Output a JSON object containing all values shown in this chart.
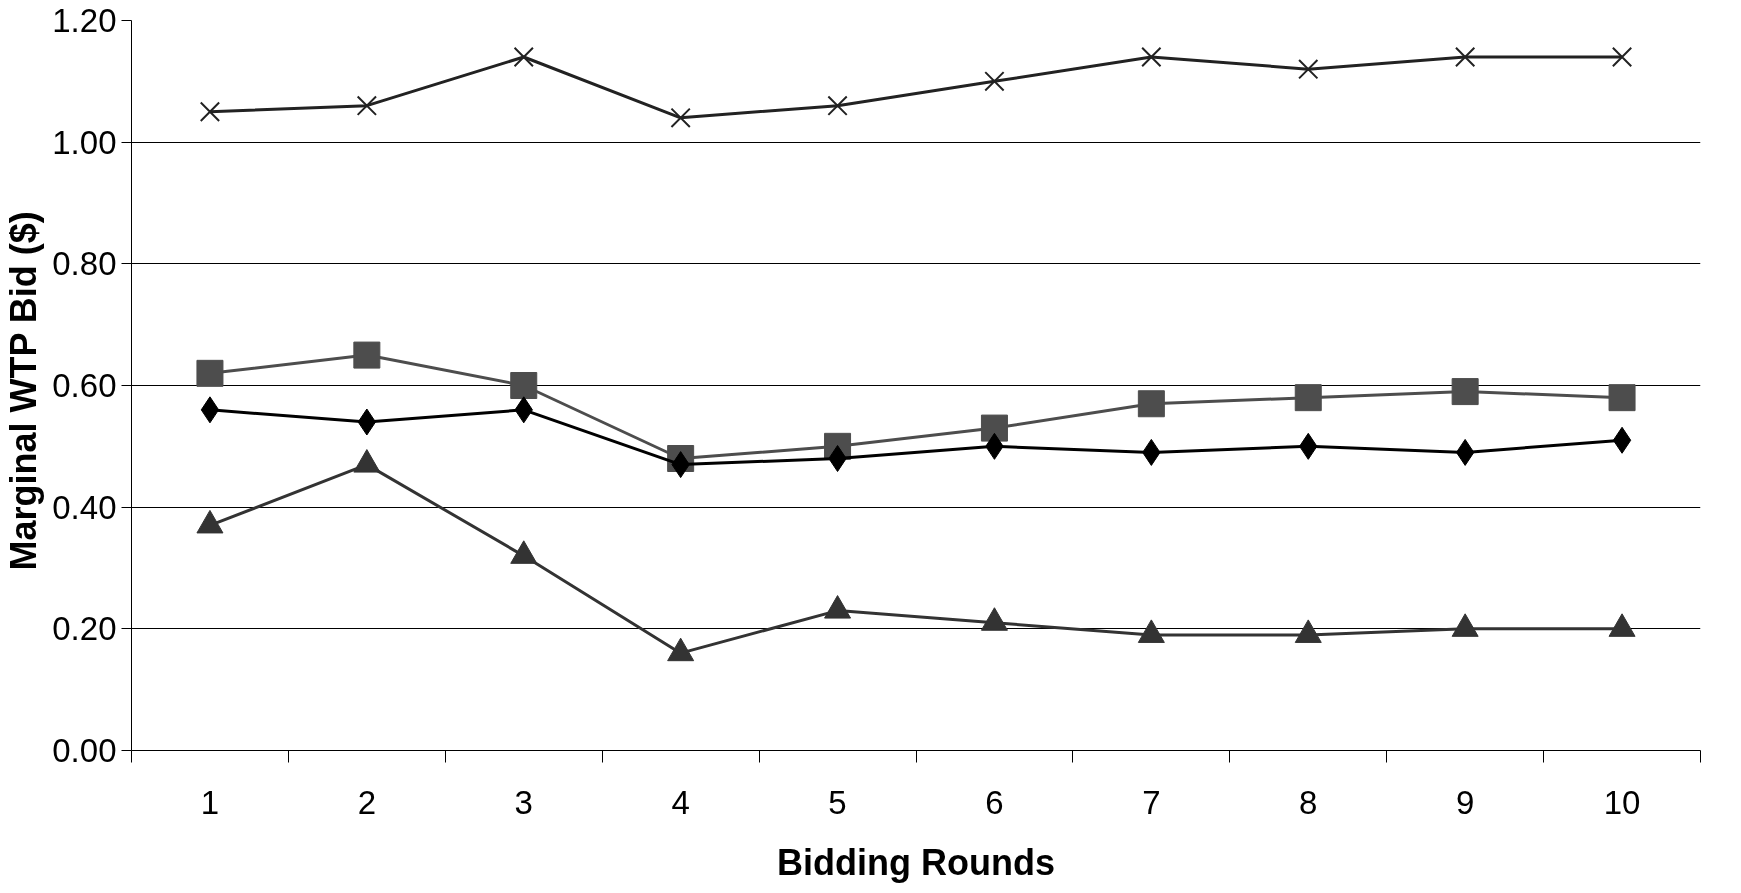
{
  "chart_data": {
    "type": "line",
    "xlabel": "Bidding Rounds",
    "ylabel": "Marginal WTP  Bid ($)",
    "categories": [
      "1",
      "2",
      "3",
      "4",
      "5",
      "6",
      "7",
      "8",
      "9",
      "10"
    ],
    "ylim": [
      0,
      1.2
    ],
    "yticks": [
      {
        "value": 0,
        "label": "0.00"
      },
      {
        "value": 0.2,
        "label": "0.20"
      },
      {
        "value": 0.4,
        "label": "0.40"
      },
      {
        "value": 0.6,
        "label": "0.60"
      },
      {
        "value": 0.8,
        "label": "0.80"
      },
      {
        "value": 1.0,
        "label": "1.00"
      },
      {
        "value": 1.2,
        "label": "1.20"
      }
    ],
    "grid": "y",
    "series": [
      {
        "color": "#222222",
        "marker": "cross",
        "values": [
          1.05,
          1.06,
          1.14,
          1.04,
          1.06,
          1.1,
          1.14,
          1.12,
          1.14,
          1.14
        ]
      },
      {
        "color": "#4d4d4d",
        "marker": "square",
        "values": [
          0.62,
          0.65,
          0.6,
          0.48,
          0.5,
          0.53,
          0.57,
          0.58,
          0.59,
          0.58
        ]
      },
      {
        "color": "#000000",
        "marker": "diamond",
        "values": [
          0.56,
          0.54,
          0.56,
          0.47,
          0.48,
          0.5,
          0.49,
          0.5,
          0.49,
          0.51
        ]
      },
      {
        "color": "#333333",
        "marker": "triangle",
        "values": [
          0.37,
          0.47,
          0.32,
          0.16,
          0.23,
          0.21,
          0.19,
          0.19,
          0.2,
          0.2
        ]
      }
    ]
  }
}
